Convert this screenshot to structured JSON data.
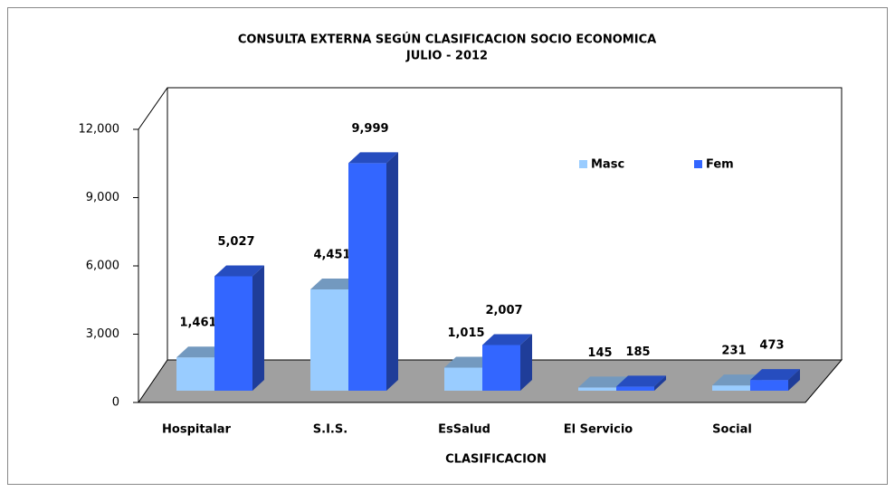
{
  "chart_data": {
    "type": "bar3d",
    "title": "CONSULTA EXTERNA SEGÚN CLASIFICACION SOCIO ECONOMICA",
    "subtitle": "JULIO  -  2012",
    "x_label": "CLASIFICACION",
    "categories": [
      "Hospitalar",
      "S.I.S.",
      "EsSalud",
      "El Servicio",
      "Social"
    ],
    "series": [
      {
        "name": "Masc",
        "color": "#99ccff",
        "values": [
          1461,
          4451,
          1015,
          145,
          231
        ],
        "value_labels": [
          "1,461",
          "4,451",
          "1,015",
          "145",
          "231"
        ]
      },
      {
        "name": "Fem",
        "color": "#3366ff",
        "values": [
          5027,
          9999,
          2007,
          185,
          473
        ],
        "value_labels": [
          "5,027",
          "9,999",
          "2,007",
          "185",
          "473"
        ]
      }
    ],
    "ylim": [
      0,
      12000
    ],
    "yticks": [
      0,
      {
        "value": 3000,
        "label": "3,000"
      },
      {
        "value": 6000,
        "label": "6,000"
      },
      {
        "value": 9000,
        "label": "9,000"
      },
      {
        "value": 12000,
        "label": "12,000"
      }
    ]
  }
}
